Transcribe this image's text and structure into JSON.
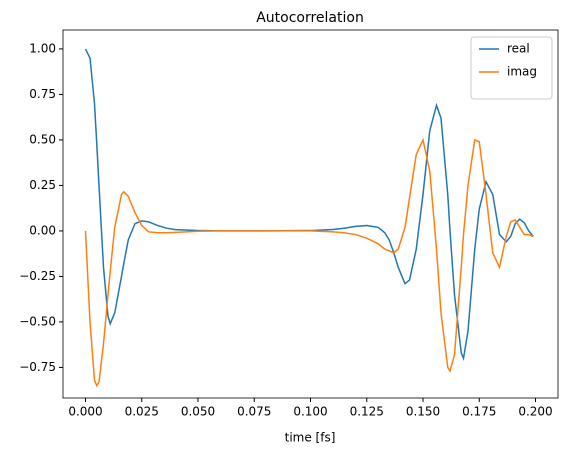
{
  "chart_data": {
    "type": "line",
    "title": "Autocorrelation",
    "x_label": "time [fs]",
    "x": [
      0,
      0.002,
      0.004,
      0.005,
      0.006,
      0.008,
      0.01,
      0.011,
      0.013,
      0.016,
      0.017,
      0.019,
      0.022,
      0.025,
      0.028,
      0.032,
      0.036,
      0.04,
      0.05,
      0.06,
      0.08,
      0.1,
      0.11,
      0.115,
      0.12,
      0.125,
      0.13,
      0.133,
      0.135,
      0.137,
      0.139,
      0.142,
      0.144,
      0.147,
      0.15,
      0.153,
      0.156,
      0.158,
      0.161,
      0.162,
      0.164,
      0.167,
      0.168,
      0.17,
      0.173,
      0.175,
      0.178,
      0.181,
      0.184,
      0.187,
      0.189,
      0.191,
      0.193,
      0.195,
      0.197,
      0.199
    ],
    "series": [
      {
        "name": "real",
        "color": "#1f77b4",
        "values": [
          1.0,
          0.95,
          0.7,
          0.48,
          0.25,
          -0.2,
          -0.47,
          -0.51,
          -0.45,
          -0.25,
          -0.18,
          -0.05,
          0.04,
          0.055,
          0.05,
          0.03,
          0.015,
          0.007,
          0.002,
          0,
          0,
          0.002,
          0.008,
          0.015,
          0.025,
          0.03,
          0.02,
          -0.01,
          -0.05,
          -0.12,
          -0.2,
          -0.29,
          -0.27,
          -0.1,
          0.2,
          0.55,
          0.69,
          0.62,
          0.2,
          0.0,
          -0.35,
          -0.67,
          -0.7,
          -0.55,
          -0.1,
          0.12,
          0.27,
          0.2,
          -0.02,
          -0.06,
          -0.03,
          0.04,
          0.065,
          0.045,
          0.0,
          -0.03
        ]
      },
      {
        "name": "imag",
        "color": "#ff7f0e",
        "values": [
          0,
          -0.5,
          -0.82,
          -0.85,
          -0.83,
          -0.62,
          -0.35,
          -0.22,
          0.02,
          0.2,
          0.215,
          0.19,
          0.1,
          0.03,
          -0.005,
          -0.01,
          -0.01,
          -0.008,
          -0.002,
          0,
          0,
          0,
          -0.005,
          -0.01,
          -0.02,
          -0.04,
          -0.07,
          -0.1,
          -0.11,
          -0.12,
          -0.1,
          0.02,
          0.18,
          0.42,
          0.5,
          0.33,
          -0.1,
          -0.45,
          -0.75,
          -0.77,
          -0.68,
          -0.2,
          -0.02,
          0.25,
          0.5,
          0.49,
          0.2,
          -0.12,
          -0.2,
          -0.03,
          0.05,
          0.06,
          0.02,
          -0.02,
          -0.02,
          -0.03
        ]
      }
    ],
    "xlim": [
      -0.01,
      0.21
    ],
    "ylim": [
      -0.918,
      1.104
    ],
    "xticks": [
      {
        "value": 0,
        "label": "0.000"
      },
      {
        "value": 0.025,
        "label": "0.025"
      },
      {
        "value": 0.05,
        "label": "0.050"
      },
      {
        "value": 0.075,
        "label": "0.075"
      },
      {
        "value": 0.1,
        "label": "0.100"
      },
      {
        "value": 0.125,
        "label": "0.125"
      },
      {
        "value": 0.15,
        "label": "0.150"
      },
      {
        "value": 0.175,
        "label": "0.175"
      },
      {
        "value": 0.2,
        "label": "0.200"
      }
    ],
    "yticks": [
      {
        "value": -0.75,
        "label": "−0.75"
      },
      {
        "value": -0.5,
        "label": "−0.50"
      },
      {
        "value": -0.25,
        "label": "−0.25"
      },
      {
        "value": 0,
        "label": "0.00"
      },
      {
        "value": 0.25,
        "label": "0.25"
      },
      {
        "value": 0.5,
        "label": "0.50"
      },
      {
        "value": 0.75,
        "label": "0.75"
      },
      {
        "value": 1,
        "label": "1.00"
      }
    ],
    "legend": "upper right",
    "grid": false
  }
}
